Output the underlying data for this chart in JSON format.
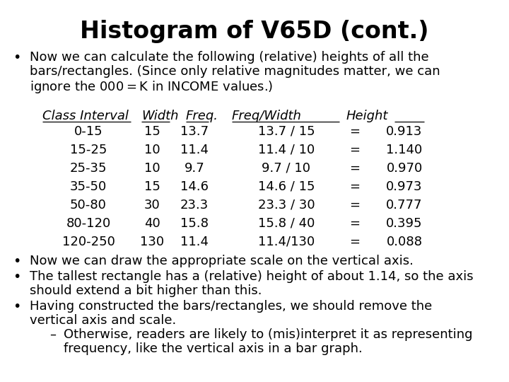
{
  "title": "Histogram of V65D (cont.)",
  "title_fontsize": 24,
  "background_color": "#ffffff",
  "text_color": "#000000",
  "bullet1_line1": "Now we can calculate the following (relative) heights of all the",
  "bullet1_line2": "bars/rectangles. (Since only relative magnitudes matter, we can",
  "bullet1_line3": "ignore the $000 = $K in INCOME values.)",
  "table_header": [
    "Class Interval",
    "Width",
    "Freq.",
    "Freq/Width",
    "Height"
  ],
  "table_rows": [
    [
      "0-15",
      "15",
      "13.7",
      "13.7 / 15",
      "=",
      "0.913"
    ],
    [
      "15-25",
      "10",
      "11.4",
      "11.4 / 10",
      "=",
      "1.140"
    ],
    [
      "25-35",
      "10",
      "9.7",
      "9.7 / 10",
      "=",
      "0.970"
    ],
    [
      "35-50",
      "15",
      "14.6",
      "14.6 / 15",
      "=",
      "0.973"
    ],
    [
      "50-80",
      "30",
      "23.3",
      "23.3 / 30",
      "=",
      "0.777"
    ],
    [
      "80-120",
      "40",
      "15.8",
      "15.8 / 40",
      "=",
      "0.395"
    ],
    [
      "120-250",
      "130",
      "11.4",
      "11.4/130",
      "=",
      "0.088"
    ]
  ],
  "bullet2": "Now we can draw the appropriate scale on the vertical axis.",
  "bullet3_line1": "The tallest rectangle has a (relative) height of about 1.14, so the axis",
  "bullet3_line2": "should extend a bit higher than this.",
  "bullet4_line1": "Having constructed the bars/rectangles, we should remove the",
  "bullet4_line2": "vertical axis and scale.",
  "sub_line1": "Otherwise, readers are likely to (mis)interpret it as representing",
  "sub_line2": "frequency, like the vertical axis in a bar graph.",
  "body_fontsize": 13,
  "table_fontsize": 13
}
